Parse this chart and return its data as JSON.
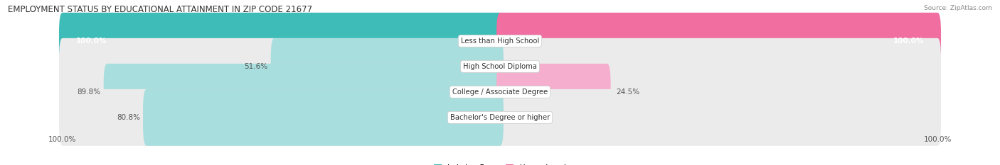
{
  "title": "EMPLOYMENT STATUS BY EDUCATIONAL ATTAINMENT IN ZIP CODE 21677",
  "source": "Source: ZipAtlas.com",
  "categories": [
    "Less than High School",
    "High School Diploma",
    "College / Associate Degree",
    "Bachelor's Degree or higher"
  ],
  "labor_force": [
    100.0,
    51.6,
    89.8,
    80.8
  ],
  "unemployed": [
    100.0,
    0.0,
    24.5,
    0.0
  ],
  "teal_color": "#3DBCB8",
  "teal_light_color": "#A8DEDD",
  "pink_color": "#F06FA0",
  "pink_light_color": "#F5AECE",
  "bg_color": "#FFFFFF",
  "bar_bg_color": "#EBEBEB",
  "title_fontsize": 8.5,
  "label_fontsize": 7.5,
  "source_fontsize": 6.5,
  "bar_height": 0.62,
  "max_val": 100
}
